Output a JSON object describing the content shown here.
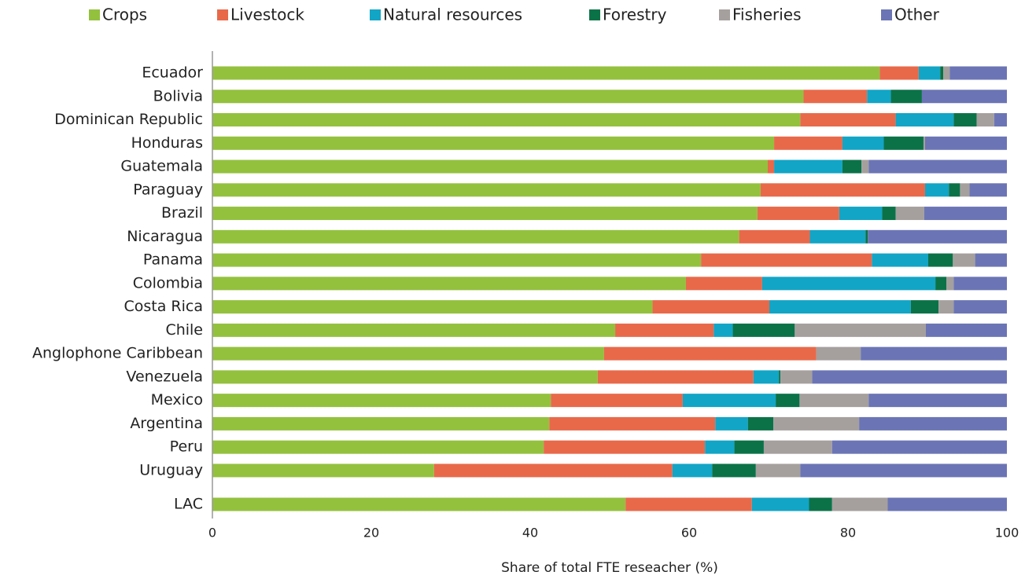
{
  "chart_data": {
    "type": "bar",
    "orientation": "horizontal",
    "stacked": true,
    "x_label": "Share of total FTE reseacher (%)",
    "categories": [
      "Ecuador",
      "Bolivia",
      "Dominican Republic",
      "Honduras",
      "Guatemala",
      "Paraguay",
      "Brazil",
      "Nicaragua",
      "Panama",
      "Colombia",
      "Costa Rica",
      "Chile",
      "Anglophone Caribbean",
      "Venezuela",
      "Mexico",
      "Argentina",
      "Peru",
      "Uruguay",
      "LAC"
    ],
    "series": [
      {
        "name": "Crops",
        "color": "#93c13e",
        "values": [
          84.0,
          74.4,
          74.0,
          70.7,
          69.9,
          69.0,
          68.6,
          66.3,
          61.5,
          59.6,
          55.4,
          50.7,
          49.3,
          48.5,
          42.6,
          42.4,
          41.7,
          27.9,
          52.0
        ]
      },
      {
        "name": "Livestock",
        "color": "#e8694a",
        "values": [
          4.9,
          8.0,
          12.0,
          8.6,
          0.8,
          20.7,
          10.3,
          8.9,
          21.5,
          9.6,
          14.7,
          12.4,
          26.7,
          19.6,
          16.6,
          20.9,
          20.3,
          30.0,
          15.9
        ]
      },
      {
        "name": "Natural resources",
        "color": "#12a5c6",
        "values": [
          2.7,
          3.0,
          7.3,
          5.2,
          8.6,
          3.0,
          5.4,
          7.0,
          7.1,
          21.8,
          17.8,
          2.4,
          0,
          3.2,
          11.7,
          4.1,
          3.7,
          5.0,
          7.2
        ]
      },
      {
        "name": "Forestry",
        "color": "#0b7248",
        "values": [
          0.4,
          3.9,
          2.9,
          5.0,
          2.4,
          1.4,
          1.7,
          0.3,
          3.1,
          1.4,
          3.5,
          7.8,
          0,
          0.2,
          3.0,
          3.2,
          3.7,
          5.5,
          2.9
        ]
      },
      {
        "name": "Fisheries",
        "color": "#a5a09e",
        "values": [
          0.8,
          0,
          2.2,
          0.2,
          0.9,
          1.2,
          3.6,
          0,
          2.8,
          0.9,
          1.9,
          16.5,
          5.6,
          4.0,
          8.7,
          10.8,
          8.6,
          5.6,
          7.0
        ]
      },
      {
        "name": "Other",
        "color": "#6b75b5",
        "values": [
          7.2,
          10.7,
          1.6,
          10.3,
          17.4,
          4.7,
          10.4,
          17.5,
          4.0,
          6.7,
          6.7,
          10.2,
          18.4,
          24.5,
          17.4,
          18.6,
          22.0,
          26.0,
          15.0
        ]
      }
    ],
    "xlim": [
      0,
      100
    ],
    "xticks": [
      0,
      20,
      40,
      60,
      80,
      100
    ],
    "legend": "top"
  }
}
